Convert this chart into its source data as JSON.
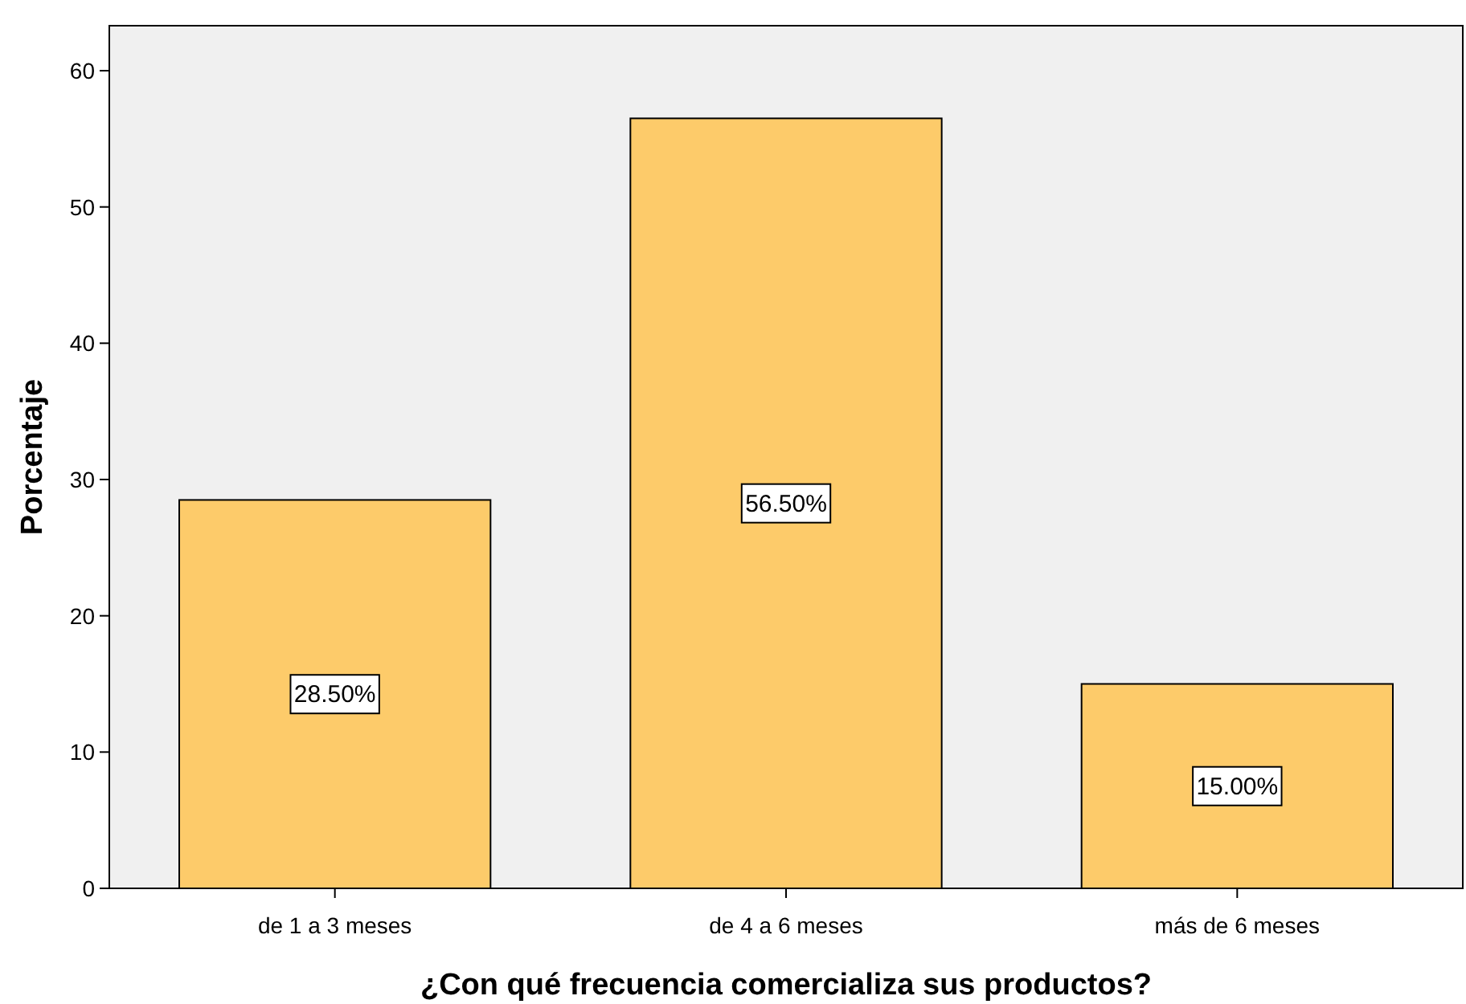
{
  "chart_data": {
    "type": "bar",
    "xlabel": "¿Con qué frecuencia comercializa sus productos?",
    "ylabel": "Porcentaje",
    "categories": [
      "de 1 a 3 meses",
      "de 4 a 6 meses",
      "más de 6 meses"
    ],
    "values": [
      28.5,
      56.5,
      15.0
    ],
    "value_labels": [
      "28.50%",
      "56.50%",
      "15.00%"
    ],
    "color": "#fdcb6a",
    "ylim": [
      0,
      63.3
    ],
    "yticks": [
      0,
      10,
      20,
      30,
      40,
      50,
      60
    ],
    "grid": false
  }
}
